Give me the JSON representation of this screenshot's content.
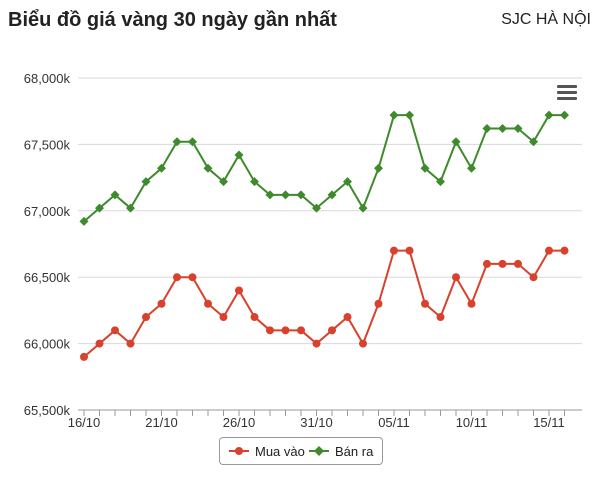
{
  "header": {
    "title": "Biểu đồ giá vàng 30 ngày gần nhất",
    "location": "SJC HÀ NỘI"
  },
  "menu": {
    "icon": "hamburger-menu-icon"
  },
  "chart_data": {
    "type": "line",
    "title": "Biểu đồ giá vàng 30 ngày gần nhất",
    "xlabel": "",
    "ylabel": "",
    "ylim": [
      65500,
      68000
    ],
    "y_ticks": [
      "65,500k",
      "66,000k",
      "66,500k",
      "67,000k",
      "67,500k",
      "68,000k"
    ],
    "x_ticks": [
      "16/10",
      "21/10",
      "26/10",
      "31/10",
      "05/11",
      "10/11",
      "15/11"
    ],
    "x": [
      "16/10",
      "17/10",
      "18/10",
      "19/10",
      "20/10",
      "21/10",
      "22/10",
      "23/10",
      "24/10",
      "25/10",
      "26/10",
      "27/10",
      "28/10",
      "29/10",
      "30/10",
      "31/10",
      "01/11",
      "02/11",
      "03/11",
      "04/11",
      "05/11",
      "06/11",
      "07/11",
      "08/11",
      "09/11",
      "10/11",
      "11/11",
      "12/11",
      "13/11",
      "14/11",
      "15/11",
      "16/11"
    ],
    "grid": true,
    "legend_position": "bottom-center",
    "series": [
      {
        "name": "Mua vào",
        "color": "#d9412c",
        "marker": "circle",
        "values": [
          65900,
          66000,
          66100,
          66000,
          66200,
          66300,
          66500,
          66500,
          66300,
          66200,
          66400,
          66200,
          66100,
          66100,
          66100,
          66000,
          66100,
          66200,
          66000,
          66300,
          66700,
          66700,
          66300,
          66200,
          66500,
          66300,
          66600,
          66600,
          66600,
          66500,
          66700,
          66700
        ]
      },
      {
        "name": "Bán ra",
        "color": "#3e8a2c",
        "marker": "diamond",
        "values": [
          66920,
          67020,
          67120,
          67020,
          67220,
          67320,
          67520,
          67520,
          67320,
          67220,
          67420,
          67220,
          67120,
          67120,
          67120,
          67020,
          67120,
          67220,
          67020,
          67320,
          67720,
          67720,
          67320,
          67220,
          67520,
          67320,
          67620,
          67620,
          67620,
          67520,
          67720,
          67720
        ]
      }
    ]
  }
}
